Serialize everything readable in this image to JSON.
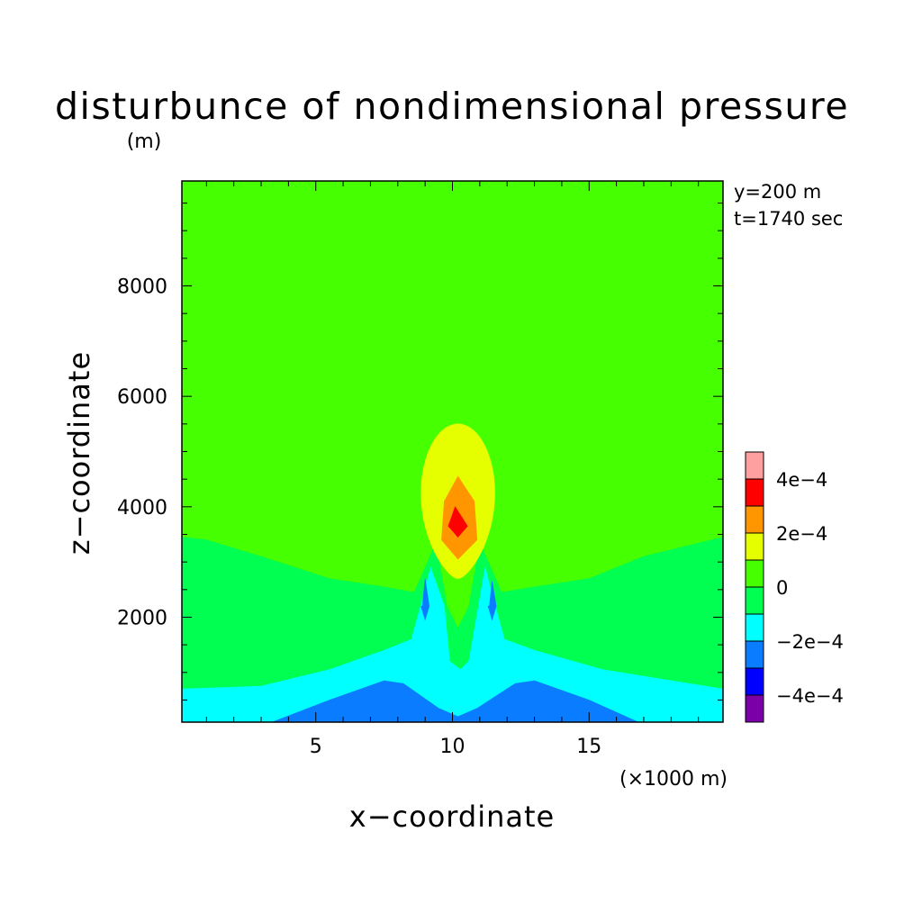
{
  "chart_data": {
    "type": "heatmap",
    "title": "disturbunce of nondimensional pressure",
    "title_units": "(m)",
    "xlabel": "x−coordinate",
    "ylabel": "z−coordinate",
    "x_units": "(×1000 m)",
    "xlim": [
      0.1,
      19.9
    ],
    "ylim": [
      100,
      9900
    ],
    "xticks": [
      5,
      10,
      15
    ],
    "xtick_labels": [
      "5",
      "10",
      "15"
    ],
    "yticks": [
      2000,
      4000,
      6000,
      8000
    ],
    "ytick_labels": [
      "2000",
      "4000",
      "6000",
      "8000"
    ],
    "annotations": [
      "y=200 m",
      "t=1740 sec"
    ],
    "colorbar": {
      "levels": [
        -0.0005,
        -0.0004,
        -0.0003,
        -0.0002,
        -0.0001,
        0,
        0.0001,
        0.0002,
        0.0003,
        0.0004,
        0.0005
      ],
      "colors": [
        "#7b00a8",
        "#0000ff",
        "#0a7cff",
        "#00ffff",
        "#00ff50",
        "#46ff00",
        "#e6ff00",
        "#ff9600",
        "#ff0000",
        "#ffa0a0"
      ],
      "tick_labels": [
        "4e−4",
        "2e−4",
        "0",
        "−2e−4",
        "−4e−4"
      ]
    },
    "regions": [
      {
        "level": "0 to 1e-4",
        "color": "#46ff00",
        "x": [
          0.1,
          19.9,
          19.9,
          0.1
        ],
        "z": [
          100,
          100,
          9900,
          9900
        ]
      },
      {
        "level": "-1e-4 to 0",
        "color": "#00ff50",
        "x": [
          0.1,
          1.0,
          3.0,
          5.5,
          7.5,
          8.6,
          9.4,
          9.8,
          10.2,
          10.6,
          11.0,
          11.8,
          13.0,
          15.0,
          17.0,
          19.9,
          19.9,
          0.1
        ],
        "z": [
          3450,
          3400,
          3100,
          2700,
          2550,
          2450,
          3350,
          2200,
          1800,
          2200,
          3350,
          2450,
          2550,
          2700,
          3100,
          3450,
          100,
          100
        ]
      },
      {
        "level": "-2e-4 to -1e-4",
        "color": "#00ffff",
        "x": [
          0.1,
          3.0,
          5.5,
          7.5,
          8.5,
          9.0,
          9.2,
          9.7,
          9.9,
          10.3,
          10.6,
          11.2,
          11.4,
          11.9,
          13.0,
          15.5,
          19.9,
          19.9,
          0.1
        ],
        "z": [
          700,
          750,
          1050,
          1400,
          1600,
          2500,
          2900,
          2200,
          1200,
          1050,
          1200,
          2900,
          2500,
          1600,
          1400,
          1050,
          700,
          100,
          100
        ]
      },
      {
        "level": "-3e-4 to -2e-4",
        "color": "#0a7cff",
        "x": [
          3.4,
          5.5,
          7.5,
          8.2,
          9.5,
          10.2,
          10.9,
          12.3,
          13.0,
          15.0,
          16.8
        ],
        "z": [
          100,
          500,
          850,
          800,
          350,
          200,
          350,
          800,
          850,
          500,
          100
        ]
      },
      {
        "level": "-3e-4 to -2e-4",
        "color": "#0a7cff",
        "x": [
          8.9,
          9.0,
          9.15,
          9.0,
          8.85
        ],
        "z": [
          2200,
          2700,
          2200,
          1950,
          2200
        ]
      },
      {
        "level": "-3e-4 to -2e-4",
        "color": "#0a7cff",
        "x": [
          11.35,
          11.45,
          11.6,
          11.45,
          11.3
        ],
        "z": [
          2200,
          2650,
          2200,
          1950,
          2200
        ]
      },
      {
        "level": "1e-4 to 2e-4",
        "color": "#e6ff00",
        "cx": 10.2,
        "cz": 4250,
        "rx": 1.35,
        "rz": 1250,
        "bottom_z": 2700
      },
      {
        "level": "2e-4 to 3e-4",
        "color": "#ff9600",
        "x": [
          10.2,
          10.8,
          10.9,
          10.2,
          9.6,
          9.7
        ],
        "z": [
          4550,
          4100,
          3400,
          3050,
          3400,
          4100
        ]
      },
      {
        "level": "3e-4 to 4e-4",
        "color": "#ff0000",
        "x": [
          10.1,
          10.55,
          10.2,
          9.85
        ],
        "z": [
          4000,
          3650,
          3450,
          3650
        ]
      }
    ]
  }
}
